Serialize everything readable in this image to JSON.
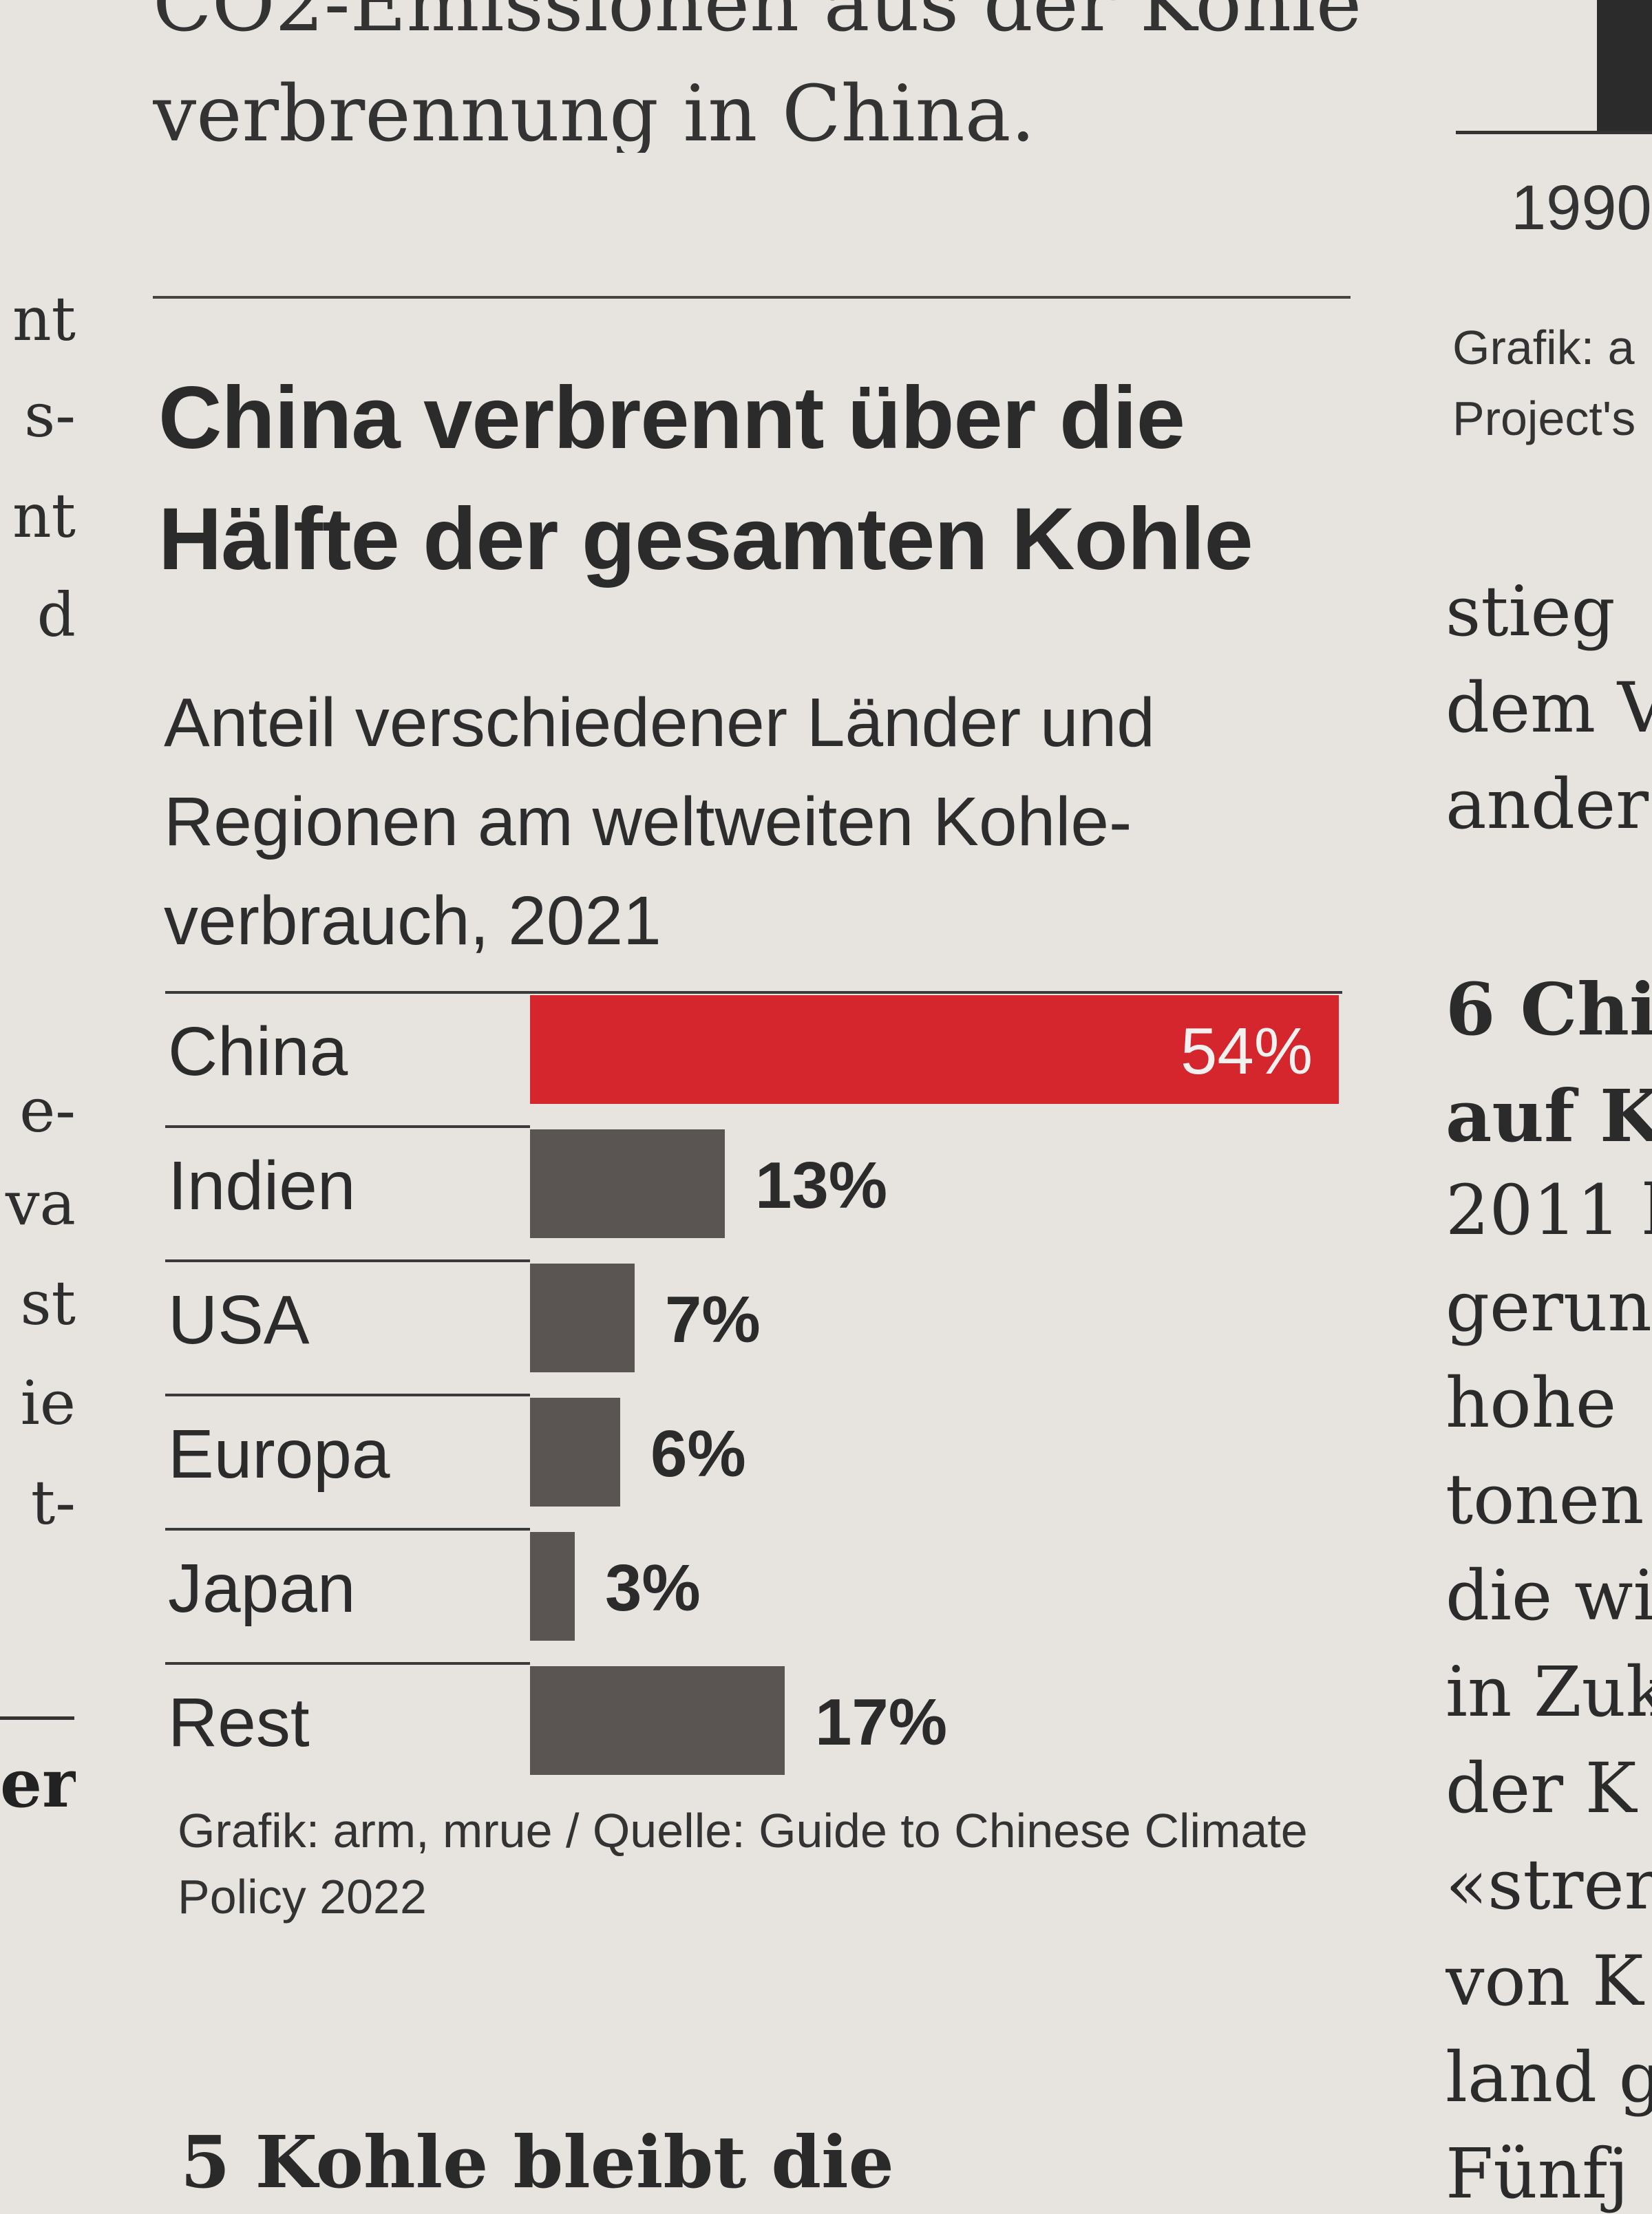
{
  "left_fragments": [
    "nt",
    "s-",
    "nt",
    "d",
    "e-",
    "va",
    "st",
    "ie",
    "t-"
  ],
  "left_bold": "er",
  "top_text": [
    "CO2-Emissionen aus der Kohle-",
    "verbrennung in China."
  ],
  "headline": "China verbrennt über die Hälfte der gesamten Kohle",
  "subtitle": "Anteil verschiedener Länder und Regionen am weltweiten Kohle-verbrauch, 2021",
  "chart_data": {
    "type": "bar",
    "orientation": "horizontal",
    "title": "China verbrennt über die Hälfte der gesamten Kohle",
    "subtitle": "Anteil verschiedener Länder und Regionen am weltweiten Kohle-verbrauch, 2021",
    "categories": [
      "China",
      "Indien",
      "USA",
      "Europa",
      "Japan",
      "Rest"
    ],
    "values": [
      54,
      13,
      7,
      6,
      3,
      17
    ],
    "value_labels": [
      "54%",
      "13%",
      "7%",
      "6%",
      "3%",
      "17%"
    ],
    "unit": "%",
    "colors": {
      "highlight": "#d4262c",
      "other": "#5a5452"
    },
    "highlight_category": "China",
    "xlim": [
      0,
      54
    ],
    "grid": false,
    "legend": "none"
  },
  "credit": "Grafik: arm, mrue / Quelle: Guide to Chinese Climate Policy 2022",
  "next_heading": "5 Kohle bleibt die",
  "right_column": {
    "year_fragment": "1990",
    "credit_fragment": [
      "Grafik: a",
      "Project's"
    ],
    "para1": [
      "stieg",
      "dem V",
      "ander"
    ],
    "heading": [
      "6 Chi",
      "auf K"
    ],
    "para2": [
      "2011 b",
      "gerun",
      "hohe",
      "tonen",
      "die wi",
      "in Zuk",
      "der K",
      "«strer",
      "von K",
      "land g",
      "Fünfj"
    ]
  }
}
